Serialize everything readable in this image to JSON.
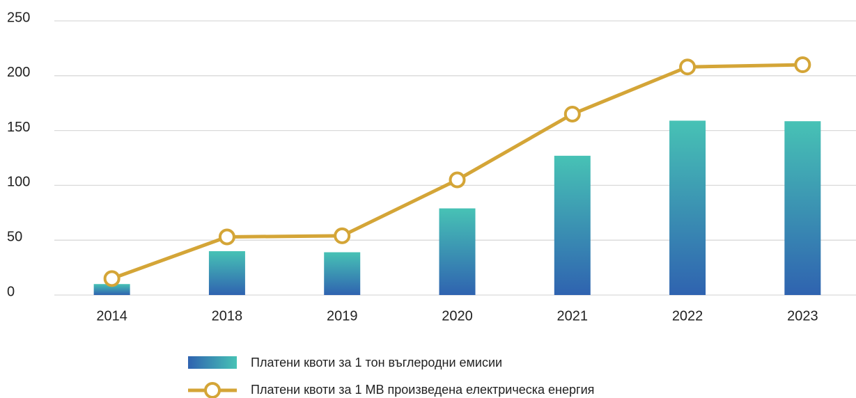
{
  "chart_data": {
    "type": "bar+line",
    "categories": [
      "2014",
      "2018",
      "2019",
      "2020",
      "2021",
      "2022",
      "2023"
    ],
    "series": [
      {
        "name": "Платени квоти за 1 тон въглеродни емисии",
        "type": "bar",
        "color": [
          "#2f63b0",
          "#47c2b5"
        ],
        "values": [
          10,
          40,
          39,
          79,
          127,
          159,
          158.5
        ]
      },
      {
        "name": "Платени квоти за 1 МВ произведена електрическа енергия",
        "type": "line",
        "color": "#d4a537",
        "values": [
          15,
          53,
          54,
          105,
          165,
          208,
          210
        ]
      }
    ],
    "ylim": [
      0,
      250
    ],
    "yticks": [
      0,
      50,
      100,
      150,
      200,
      250
    ],
    "grid": true,
    "legend": "bottom"
  }
}
